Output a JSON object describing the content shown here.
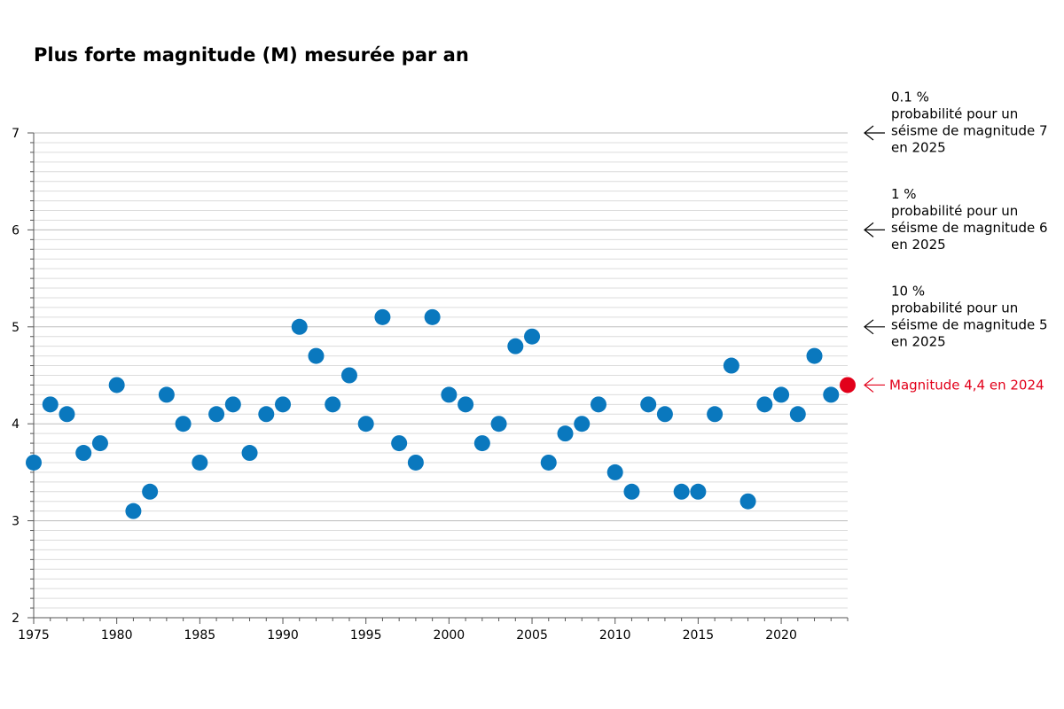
{
  "chart_data": {
    "type": "scatter",
    "title": "Plus forte magnitude (M) mesurée par an",
    "xlabel": "",
    "ylabel": "",
    "xlim": [
      1975,
      2024
    ],
    "ylim": [
      2,
      7
    ],
    "x_ticks": [
      "1975",
      "1980",
      "1985",
      "1990",
      "1995",
      "2000",
      "2005",
      "2010",
      "2015",
      "2020"
    ],
    "y_ticks": [
      "2",
      "3",
      "4",
      "5",
      "6",
      "7"
    ],
    "grid": true,
    "series": [
      {
        "x": [
          1975,
          1976,
          1977,
          1978,
          1979,
          1980,
          1981,
          1982,
          1983,
          1984,
          1985,
          1986,
          1987,
          1988,
          1989,
          1990,
          1991,
          1992,
          1993,
          1994,
          1995,
          1996,
          1997,
          1998,
          1999,
          2000,
          2001,
          2002,
          2003,
          2004,
          2005,
          2006,
          2007,
          2008,
          2009,
          2010,
          2011,
          2012,
          2013,
          2014,
          2015,
          2016,
          2017,
          2018,
          2019,
          2020,
          2021,
          2022,
          2023
        ],
        "y": [
          3.6,
          4.2,
          4.1,
          3.7,
          3.8,
          4.4,
          3.1,
          3.3,
          4.3,
          4.0,
          3.6,
          4.1,
          4.2,
          3.7,
          4.1,
          4.2,
          5.0,
          4.7,
          4.2,
          4.5,
          4.0,
          5.1,
          3.8,
          3.6,
          5.1,
          4.3,
          4.2,
          3.8,
          4.0,
          4.8,
          4.9,
          3.6,
          3.9,
          4.0,
          4.2,
          3.5,
          3.3,
          4.2,
          4.1,
          3.3,
          3.3,
          4.1,
          4.6,
          3.2,
          4.2,
          4.3,
          4.1,
          4.7,
          4.3
        ],
        "color": "#0a78be"
      },
      {
        "x": [
          2024
        ],
        "y": [
          4.4
        ],
        "color": "#e2001a"
      }
    ],
    "annotations": [
      {
        "y": 7,
        "lines": [
          "0.1 %",
          "probabilité pour un",
          "séisme de magnitude 7",
          "en 2025"
        ]
      },
      {
        "y": 6,
        "lines": [
          "1 %",
          "probabilité pour un",
          "séisme de magnitude 6",
          "en 2025"
        ]
      },
      {
        "y": 5,
        "lines": [
          "10 %",
          "probabilité pour un",
          "séisme de magnitude 5",
          "en 2025"
        ]
      }
    ],
    "current_annotation": {
      "y": 4.4,
      "text": "Magnitude 4,4 en 2024",
      "color": "#e2001a"
    }
  }
}
